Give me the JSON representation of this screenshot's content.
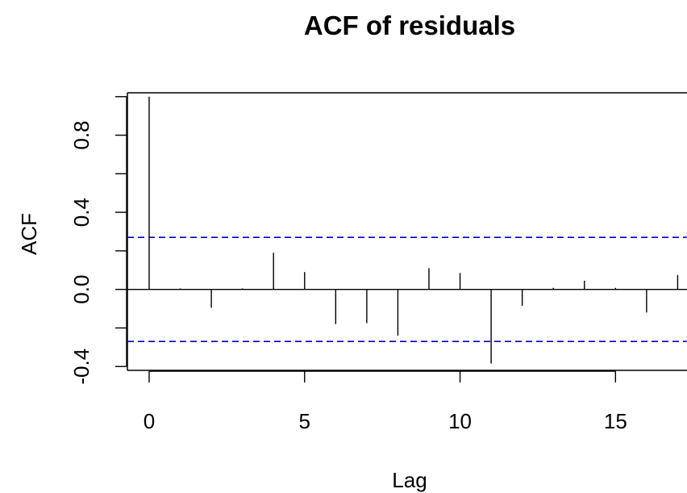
{
  "chart_data": {
    "type": "bar",
    "title": "ACF of residuals",
    "xlabel": "Lag",
    "ylabel": "ACF",
    "xlim": [
      -0.7,
      17.3
    ],
    "ylim": [
      -0.42,
      1.02
    ],
    "x_ticks": [
      0,
      5,
      10,
      15
    ],
    "x_tick_labels": [
      "0",
      "5",
      "10",
      "15"
    ],
    "y_ticks": [
      -0.4,
      0.0,
      0.4,
      0.8
    ],
    "y_tick_labels": [
      "-0.4",
      "0.0",
      "0.4",
      "0.8"
    ],
    "y_minor_ticks": [
      -0.4,
      -0.2,
      0.0,
      0.2,
      0.4,
      0.6,
      0.8,
      1.0
    ],
    "lags": [
      0,
      1,
      2,
      3,
      4,
      5,
      6,
      7,
      8,
      9,
      10,
      11,
      12,
      13,
      14,
      15,
      16,
      17
    ],
    "values": [
      1.0,
      0.005,
      -0.095,
      0.005,
      0.19,
      0.09,
      -0.18,
      -0.175,
      -0.24,
      0.11,
      0.085,
      -0.385,
      -0.085,
      0.008,
      0.045,
      0.008,
      -0.12,
      0.075
    ],
    "confidence_limits": [
      0.27,
      -0.27
    ],
    "confidence_line_color": "#0000CC",
    "bar_color": "#000000",
    "zero_line": true,
    "grid": false
  }
}
